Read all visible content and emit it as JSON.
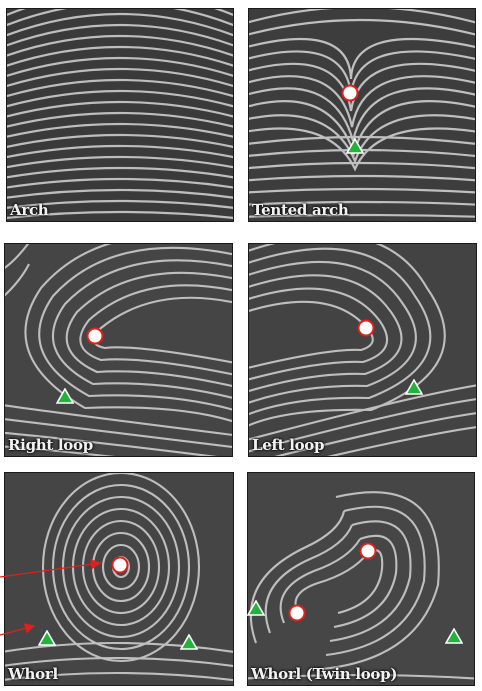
{
  "panels": [
    {
      "key": "arch",
      "label": "Arch",
      "cores": 0,
      "deltas": 0
    },
    {
      "key": "tented",
      "label": "Tented arch",
      "cores": 1,
      "deltas": 1
    },
    {
      "key": "rightloop",
      "label": "Right loop",
      "cores": 1,
      "deltas": 1
    },
    {
      "key": "leftloop",
      "label": "Left loop",
      "cores": 1,
      "deltas": 1
    },
    {
      "key": "whorl",
      "label": "Whorl",
      "cores": 1,
      "deltas": 2
    },
    {
      "key": "twinloop",
      "label": "Whorl (Twin loop)",
      "cores": 2,
      "deltas": 2
    }
  ],
  "colors": {
    "core_fill": "#ffffff",
    "core_stroke": "#e0201c",
    "delta_fill": "#22b33a",
    "delta_stroke": "#ffffff",
    "arrow": "#e0201c",
    "ridge_dark": "#2a2a2a",
    "ridge_light": "#d8d8d8"
  }
}
